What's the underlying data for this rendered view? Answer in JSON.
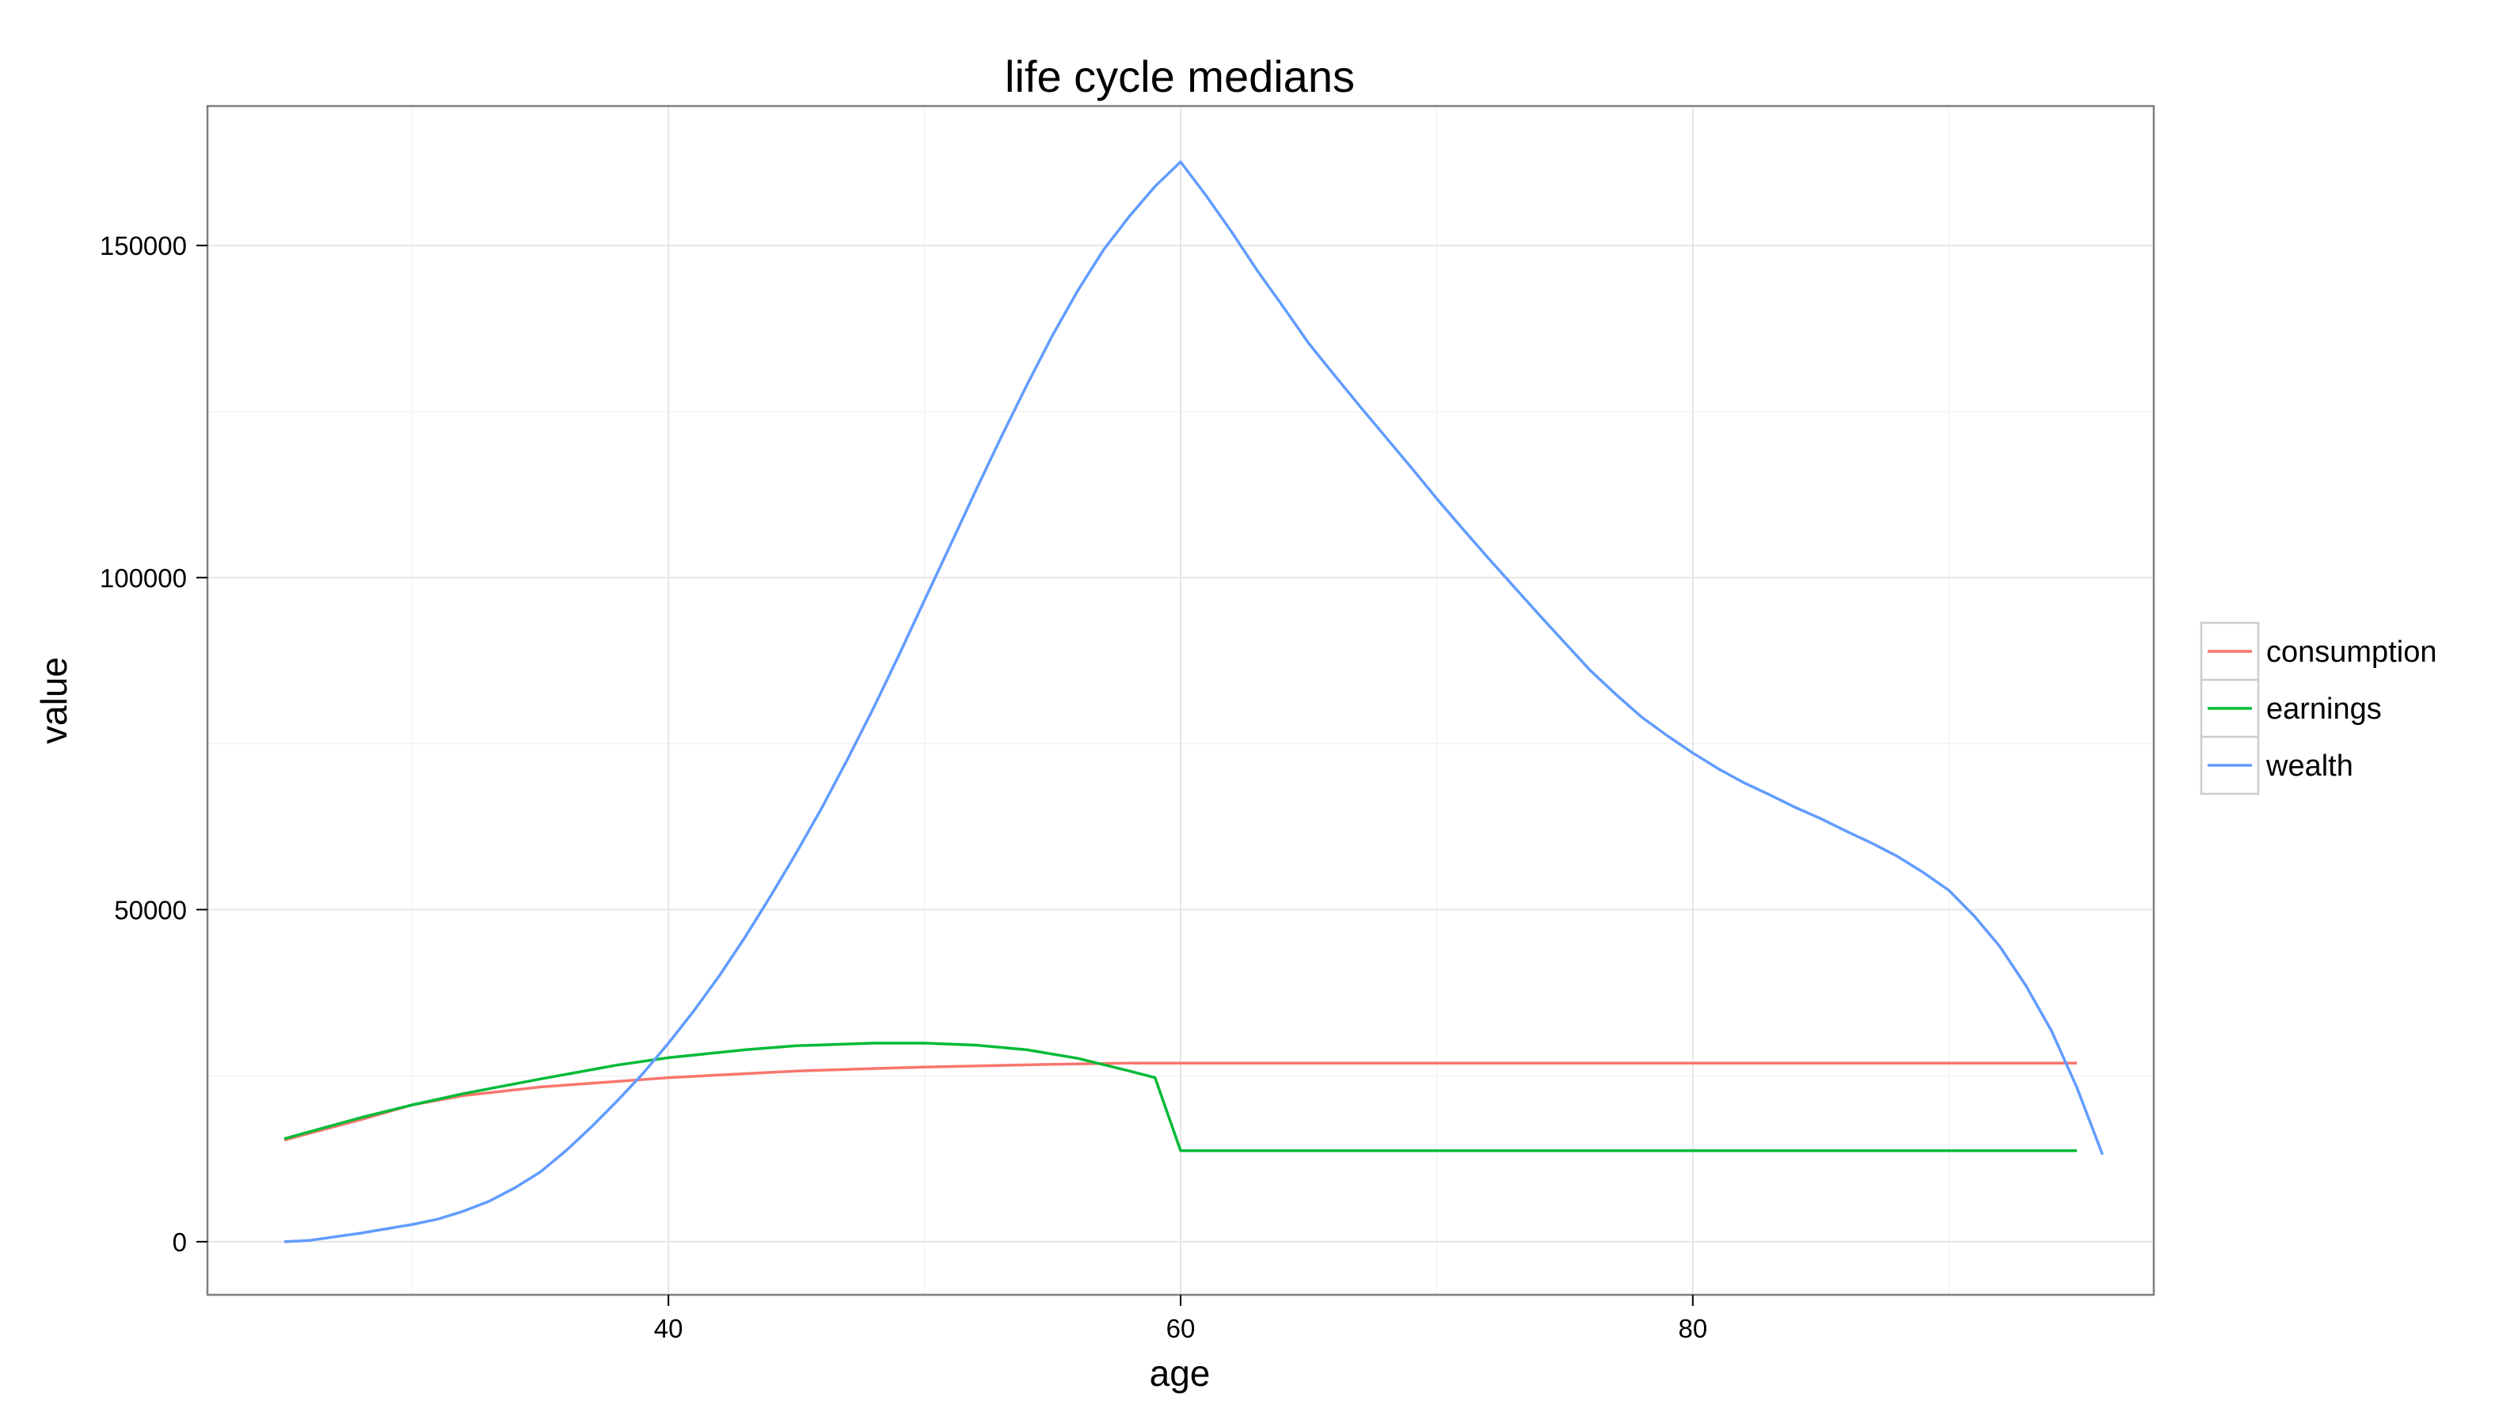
{
  "chart_data": {
    "type": "line",
    "title": "life cycle medians",
    "xlabel": "age",
    "ylabel": "value",
    "xlim": [
      22,
      98
    ],
    "ylim": [
      -8000,
      171000
    ],
    "x_ticks": [
      40,
      60,
      80
    ],
    "y_ticks": [
      0,
      50000,
      100000,
      150000
    ],
    "x_tick_labels": [
      "40",
      "60",
      "80"
    ],
    "y_tick_labels": [
      "0",
      "50000",
      "100000",
      "150000"
    ],
    "grid": true,
    "legend_position": "right",
    "series": [
      {
        "name": "consumption",
        "color": "#F8766D",
        "points": [
          [
            25,
            15300
          ],
          [
            28,
            18400
          ],
          [
            30,
            20600
          ],
          [
            32,
            22000
          ],
          [
            35,
            23300
          ],
          [
            40,
            24700
          ],
          [
            45,
            25700
          ],
          [
            50,
            26300
          ],
          [
            55,
            26700
          ],
          [
            58,
            26900
          ],
          [
            60,
            26900
          ],
          [
            70,
            26900
          ],
          [
            80,
            26900
          ],
          [
            90,
            26900
          ],
          [
            95,
            26900
          ]
        ]
      },
      {
        "name": "earnings",
        "color": "#00BA38",
        "points": [
          [
            25,
            15500
          ],
          [
            28,
            18700
          ],
          [
            30,
            20600
          ],
          [
            32,
            22300
          ],
          [
            35,
            24500
          ],
          [
            38,
            26600
          ],
          [
            40,
            27700
          ],
          [
            43,
            28900
          ],
          [
            45,
            29500
          ],
          [
            48,
            29900
          ],
          [
            50,
            29900
          ],
          [
            52,
            29600
          ],
          [
            54,
            28900
          ],
          [
            56,
            27600
          ],
          [
            58,
            25700
          ],
          [
            59,
            24700
          ],
          [
            60,
            13700
          ],
          [
            70,
            13700
          ],
          [
            80,
            13700
          ],
          [
            90,
            13700
          ],
          [
            95,
            13700
          ]
        ]
      },
      {
        "name": "wealth",
        "color": "#619CFF",
        "points": [
          [
            25,
            0
          ],
          [
            26,
            200
          ],
          [
            28,
            1300
          ],
          [
            30,
            2600
          ],
          [
            31,
            3400
          ],
          [
            32,
            4600
          ],
          [
            33,
            6100
          ],
          [
            34,
            8100
          ],
          [
            35,
            10500
          ],
          [
            36,
            13700
          ],
          [
            37,
            17300
          ],
          [
            38,
            21200
          ],
          [
            39,
            25300
          ],
          [
            40,
            29900
          ],
          [
            41,
            34800
          ],
          [
            42,
            40100
          ],
          [
            43,
            45900
          ],
          [
            44,
            52100
          ],
          [
            45,
            58600
          ],
          [
            46,
            65400
          ],
          [
            47,
            72700
          ],
          [
            48,
            80300
          ],
          [
            49,
            88300
          ],
          [
            50,
            96600
          ],
          [
            51,
            104800
          ],
          [
            52,
            113100
          ],
          [
            53,
            121200
          ],
          [
            54,
            129000
          ],
          [
            55,
            136500
          ],
          [
            56,
            143300
          ],
          [
            57,
            149400
          ],
          [
            58,
            154400
          ],
          [
            59,
            158900
          ],
          [
            60,
            162600
          ],
          [
            61,
            157500
          ],
          [
            62,
            152000
          ],
          [
            63,
            146200
          ],
          [
            64,
            140800
          ],
          [
            65,
            135300
          ],
          [
            66,
            130500
          ],
          [
            67,
            125800
          ],
          [
            68,
            121200
          ],
          [
            69,
            116600
          ],
          [
            70,
            111900
          ],
          [
            71,
            107400
          ],
          [
            72,
            103000
          ],
          [
            73,
            98700
          ],
          [
            74,
            94400
          ],
          [
            75,
            90200
          ],
          [
            76,
            86000
          ],
          [
            77,
            82400
          ],
          [
            78,
            79000
          ],
          [
            79,
            76200
          ],
          [
            80,
            73600
          ],
          [
            81,
            71200
          ],
          [
            82,
            69100
          ],
          [
            83,
            67300
          ],
          [
            84,
            65400
          ],
          [
            85,
            63700
          ],
          [
            86,
            61800
          ],
          [
            87,
            60000
          ],
          [
            88,
            58000
          ],
          [
            89,
            55600
          ],
          [
            90,
            52900
          ],
          [
            91,
            49000
          ],
          [
            92,
            44400
          ],
          [
            93,
            38600
          ],
          [
            94,
            31800
          ],
          [
            95,
            23200
          ],
          [
            96,
            13100
          ]
        ]
      }
    ]
  }
}
